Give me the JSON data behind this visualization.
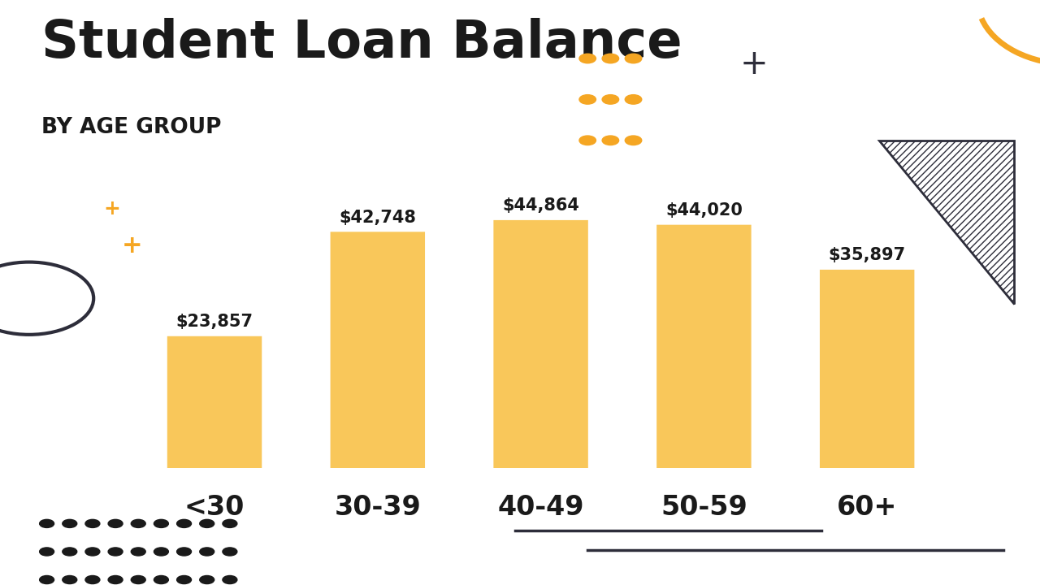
{
  "title": "Student Loan Balance",
  "subtitle": "BY AGE GROUP",
  "categories": [
    "<30",
    "30-39",
    "40-49",
    "50-59",
    "60+"
  ],
  "values": [
    23857,
    42748,
    44864,
    44020,
    35897
  ],
  "labels": [
    "$23,857",
    "$42,748",
    "$44,864",
    "$44,020",
    "$35,897"
  ],
  "bar_color": "#F9C75A",
  "background_color": "#FFFFFF",
  "title_color": "#1a1a1a",
  "subtitle_color": "#1a1a1a",
  "bar_label_color": "#1a1a1a",
  "category_label_color": "#1a1a1a",
  "decoration_orange": "#F5A623",
  "decoration_dark": "#2d2d3a",
  "dot_color_bottom": "#1a1a1a",
  "triangle_color": "#2d2d3a",
  "arc_color": "#F5A623",
  "plus_dark_color": "#2d2d3a",
  "plus_orange_color": "#F5A623",
  "title_fontsize": 46,
  "subtitle_fontsize": 19,
  "bar_label_fontsize": 15,
  "category_fontsize": 24
}
